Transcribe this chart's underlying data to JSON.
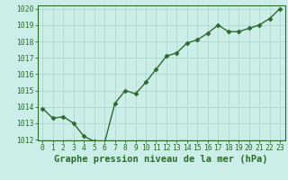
{
  "x": [
    0,
    1,
    2,
    3,
    4,
    5,
    6,
    7,
    8,
    9,
    10,
    11,
    12,
    13,
    14,
    15,
    16,
    17,
    18,
    19,
    20,
    21,
    22,
    23
  ],
  "y": [
    1013.9,
    1013.3,
    1013.4,
    1013.0,
    1012.2,
    1011.9,
    1011.8,
    1014.2,
    1015.0,
    1014.8,
    1015.5,
    1016.3,
    1017.1,
    1017.3,
    1017.9,
    1018.1,
    1018.5,
    1019.0,
    1018.6,
    1018.6,
    1018.8,
    1019.0,
    1019.4,
    1020.0
  ],
  "ylim": [
    1012,
    1020
  ],
  "xlim": [
    -0.5,
    23.5
  ],
  "yticks": [
    1012,
    1013,
    1014,
    1015,
    1016,
    1017,
    1018,
    1019,
    1020
  ],
  "xticks": [
    0,
    1,
    2,
    3,
    4,
    5,
    6,
    7,
    8,
    9,
    10,
    11,
    12,
    13,
    14,
    15,
    16,
    17,
    18,
    19,
    20,
    21,
    22,
    23
  ],
  "xlabel": "Graphe pression niveau de la mer (hPa)",
  "line_color": "#2d6a2d",
  "marker": "D",
  "marker_size": 2.5,
  "background_color": "#cceee8",
  "grid_color": "#b0d8d0",
  "tick_label_fontsize": 5.8,
  "xlabel_fontsize": 7.5,
  "line_width": 1.0
}
